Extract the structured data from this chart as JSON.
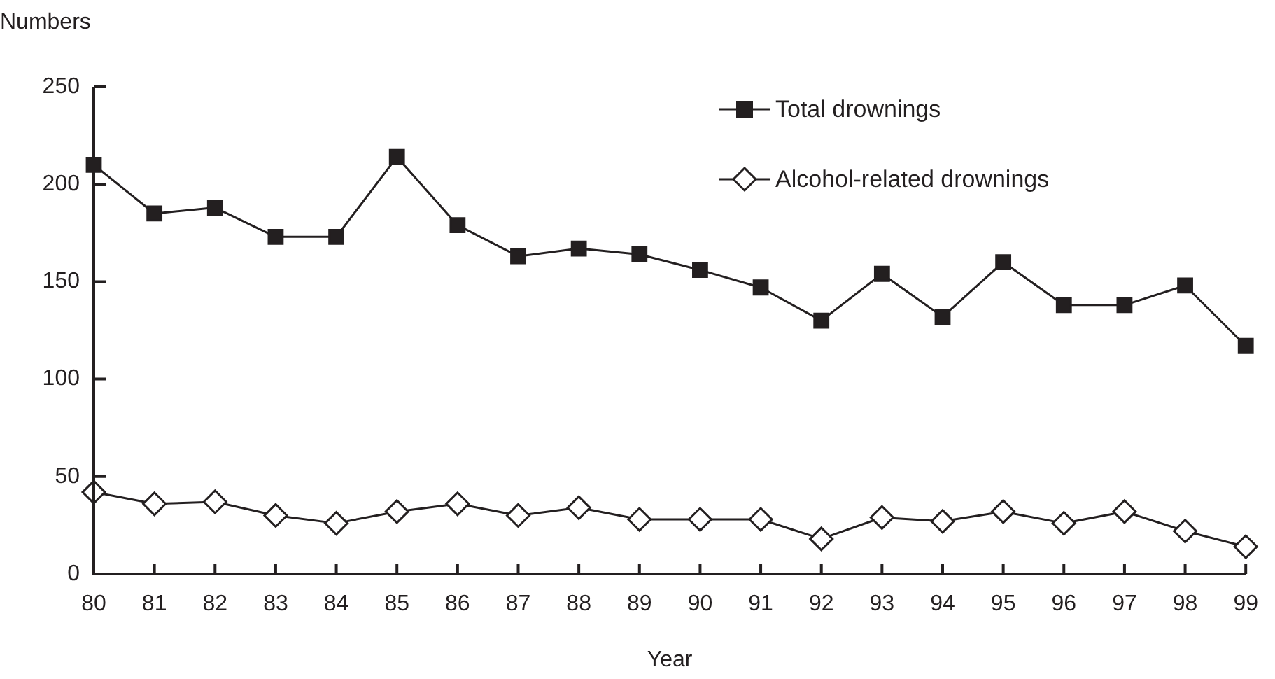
{
  "chart_data": {
    "type": "line",
    "xlabel": "Year",
    "ylabel": "Numbers",
    "categories": [
      "80",
      "81",
      "82",
      "83",
      "84",
      "85",
      "86",
      "87",
      "88",
      "89",
      "90",
      "91",
      "92",
      "93",
      "94",
      "95",
      "96",
      "97",
      "98",
      "99"
    ],
    "series": [
      {
        "name": "Total drownings",
        "color": "#231f20",
        "marker": "square",
        "values": [
          210,
          185,
          188,
          173,
          173,
          214,
          179,
          163,
          167,
          164,
          156,
          147,
          130,
          154,
          132,
          160,
          138,
          138,
          148,
          117
        ]
      },
      {
        "name": "Alcohol-related drownings",
        "color": "#231f20",
        "marker": "diamond",
        "values": [
          42,
          36,
          37,
          30,
          26,
          32,
          36,
          30,
          34,
          28,
          28,
          28,
          18,
          29,
          27,
          32,
          26,
          32,
          22,
          14
        ]
      }
    ],
    "ylim": [
      0,
      250
    ],
    "yticks": [
      0,
      50,
      100,
      150,
      200,
      250
    ],
    "grid": false,
    "legend": "top right",
    "line_style": "solid"
  }
}
